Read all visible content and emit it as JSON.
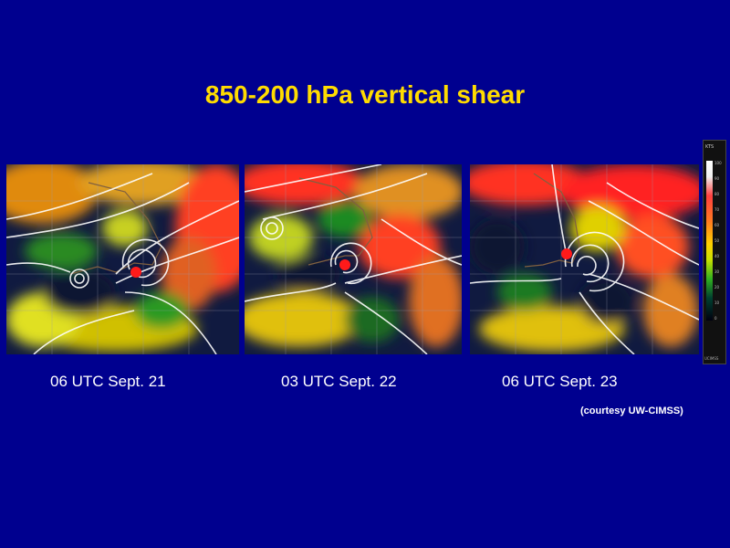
{
  "slide": {
    "title": "850-200 hPa vertical shear",
    "credit": "(courtesy UW-CIMSS)"
  },
  "panels": [
    {
      "caption": "06 UTC Sept. 21"
    },
    {
      "caption": "03 UTC Sept. 22"
    },
    {
      "caption": "06 UTC Sept. 23"
    }
  ],
  "colors": {
    "background": "#00008f",
    "title": "#ffdc00",
    "storm_marker": "#ff1a1a",
    "streamlines": "#ffffff"
  },
  "color_scale": {
    "unit": "KTS",
    "ticks": [
      "100",
      "90",
      "80",
      "70",
      "60",
      "50",
      "40",
      "30",
      "20",
      "10",
      "0"
    ],
    "footer": "UCIMSS"
  }
}
